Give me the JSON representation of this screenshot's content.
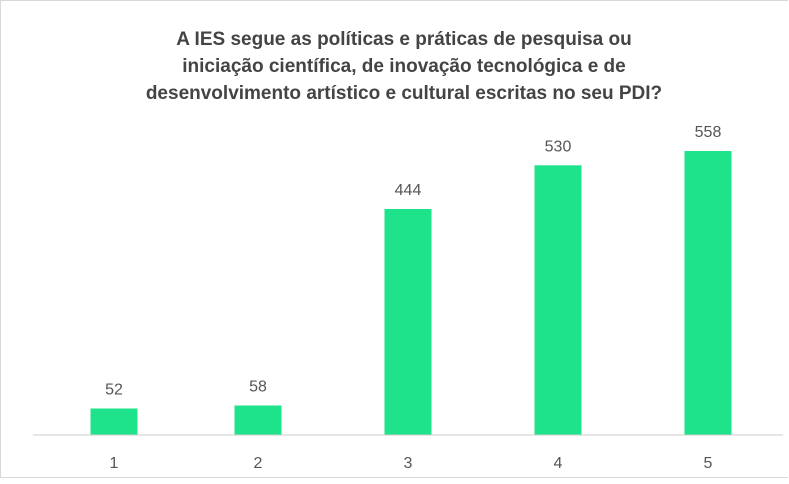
{
  "chart_data": {
    "type": "bar",
    "title_lines": [
      "A IES segue as políticas e práticas de pesquisa ou",
      "iniciação científica, de inovação tecnológica e de",
      "desenvolvimento artístico e cultural escritas no seu PDI?"
    ],
    "categories": [
      "1",
      "2",
      "3",
      "4",
      "5"
    ],
    "values": [
      52,
      58,
      444,
      530,
      558
    ],
    "ylim": [
      0,
      558
    ],
    "grid": false,
    "legend": "none",
    "bar_color": "#1ee38a",
    "axis_color": "#cccccc",
    "text_color": "#555555"
  }
}
